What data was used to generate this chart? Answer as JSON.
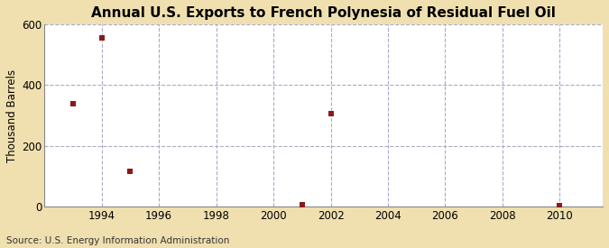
{
  "title": "Annual U.S. Exports to French Polynesia of Residual Fuel Oil",
  "ylabel": "Thousand Barrels",
  "source": "Source: U.S. Energy Information Administration",
  "background_color": "#f0e0b0",
  "plot_background_color": "#ffffff",
  "data_x": [
    1993,
    1994,
    1995,
    2001,
    2002,
    2010
  ],
  "data_y": [
    340,
    555,
    115,
    5,
    305,
    4
  ],
  "marker_color": "#8b1a1a",
  "marker_size": 5,
  "xlim": [
    1992.0,
    2011.5
  ],
  "ylim": [
    0,
    600
  ],
  "xticks": [
    1994,
    1996,
    1998,
    2000,
    2002,
    2004,
    2006,
    2008,
    2010
  ],
  "yticks": [
    0,
    200,
    400,
    600
  ],
  "grid_color": "#aaaacc",
  "grid_style": "--",
  "title_fontsize": 11,
  "axis_fontsize": 8.5,
  "source_fontsize": 7.5
}
